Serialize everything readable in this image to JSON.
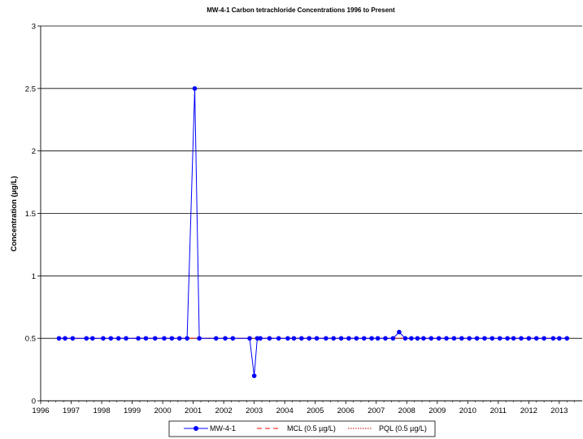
{
  "chart_data": {
    "type": "line",
    "title": "MW-4-1 Carbon tetrachloride Concentrations 1996 to Present",
    "xlabel": "",
    "ylabel": "Concentration (µg/L)",
    "xlim": [
      1996,
      2013.75
    ],
    "ylim": [
      0,
      3
    ],
    "x_ticks": [
      "1996",
      "1997",
      "1998",
      "1999",
      "2000",
      "2001",
      "2002",
      "2003",
      "2004",
      "2005",
      "2006",
      "2007",
      "2008",
      "2009",
      "2010",
      "2011",
      "2012",
      "2013"
    ],
    "y_ticks": [
      "0",
      "0.5",
      "1",
      "1.5",
      "2",
      "2.5",
      "3"
    ],
    "grid": "horizontal",
    "legend_position": "bottom",
    "series": [
      {
        "name": "MW-4-1",
        "color": "#0000ff",
        "x": [
          1996.6,
          1996.8,
          1997.05,
          1997.5,
          1997.7,
          1998.05,
          1998.3,
          1998.55,
          1998.8,
          1999.2,
          1999.45,
          1999.75,
          2000.05,
          2000.3,
          2000.55,
          2000.8,
          2001.05,
          2001.2,
          2001.75,
          2002.05,
          2002.3,
          2002.85,
          2003.0,
          2003.1,
          2003.2,
          2003.5,
          2003.8,
          2004.1,
          2004.3,
          2004.55,
          2004.8,
          2005.05,
          2005.35,
          2005.6,
          2005.85,
          2006.1,
          2006.35,
          2006.6,
          2006.85,
          2007.05,
          2007.3,
          2007.55,
          2007.75,
          2007.95,
          2008.15,
          2008.35,
          2008.55,
          2008.8,
          2009.05,
          2009.3,
          2009.55,
          2009.8,
          2010.05,
          2010.3,
          2010.55,
          2010.8,
          2011.05,
          2011.3,
          2011.5,
          2011.75,
          2012.0,
          2012.25,
          2012.5,
          2012.8,
          2013.0,
          2013.25
        ],
        "values": [
          0.5,
          0.5,
          0.5,
          0.5,
          0.5,
          0.5,
          0.5,
          0.5,
          0.5,
          0.5,
          0.5,
          0.5,
          0.5,
          0.5,
          0.5,
          0.5,
          2.5,
          0.5,
          0.5,
          0.5,
          0.5,
          0.5,
          0.2,
          0.5,
          0.5,
          0.5,
          0.5,
          0.5,
          0.5,
          0.5,
          0.5,
          0.5,
          0.5,
          0.5,
          0.5,
          0.5,
          0.5,
          0.5,
          0.5,
          0.5,
          0.5,
          0.5,
          0.55,
          0.5,
          0.5,
          0.5,
          0.5,
          0.5,
          0.5,
          0.5,
          0.5,
          0.5,
          0.5,
          0.5,
          0.5,
          0.5,
          0.5,
          0.5,
          0.5,
          0.5,
          0.5,
          0.5,
          0.5,
          0.5,
          0.5,
          0.5
        ]
      },
      {
        "name": "MCL (0.5 µg/L)",
        "color": "#ff0000",
        "style": "dashed",
        "x": [
          1996.6,
          2013.25
        ],
        "values": [
          0.5,
          0.5
        ]
      },
      {
        "name": "PQL (0.5 µg/L)",
        "color": "#cc0000",
        "style": "dotted",
        "x": [
          1996.6,
          2013.25
        ],
        "values": [
          0.5,
          0.5
        ]
      }
    ]
  }
}
